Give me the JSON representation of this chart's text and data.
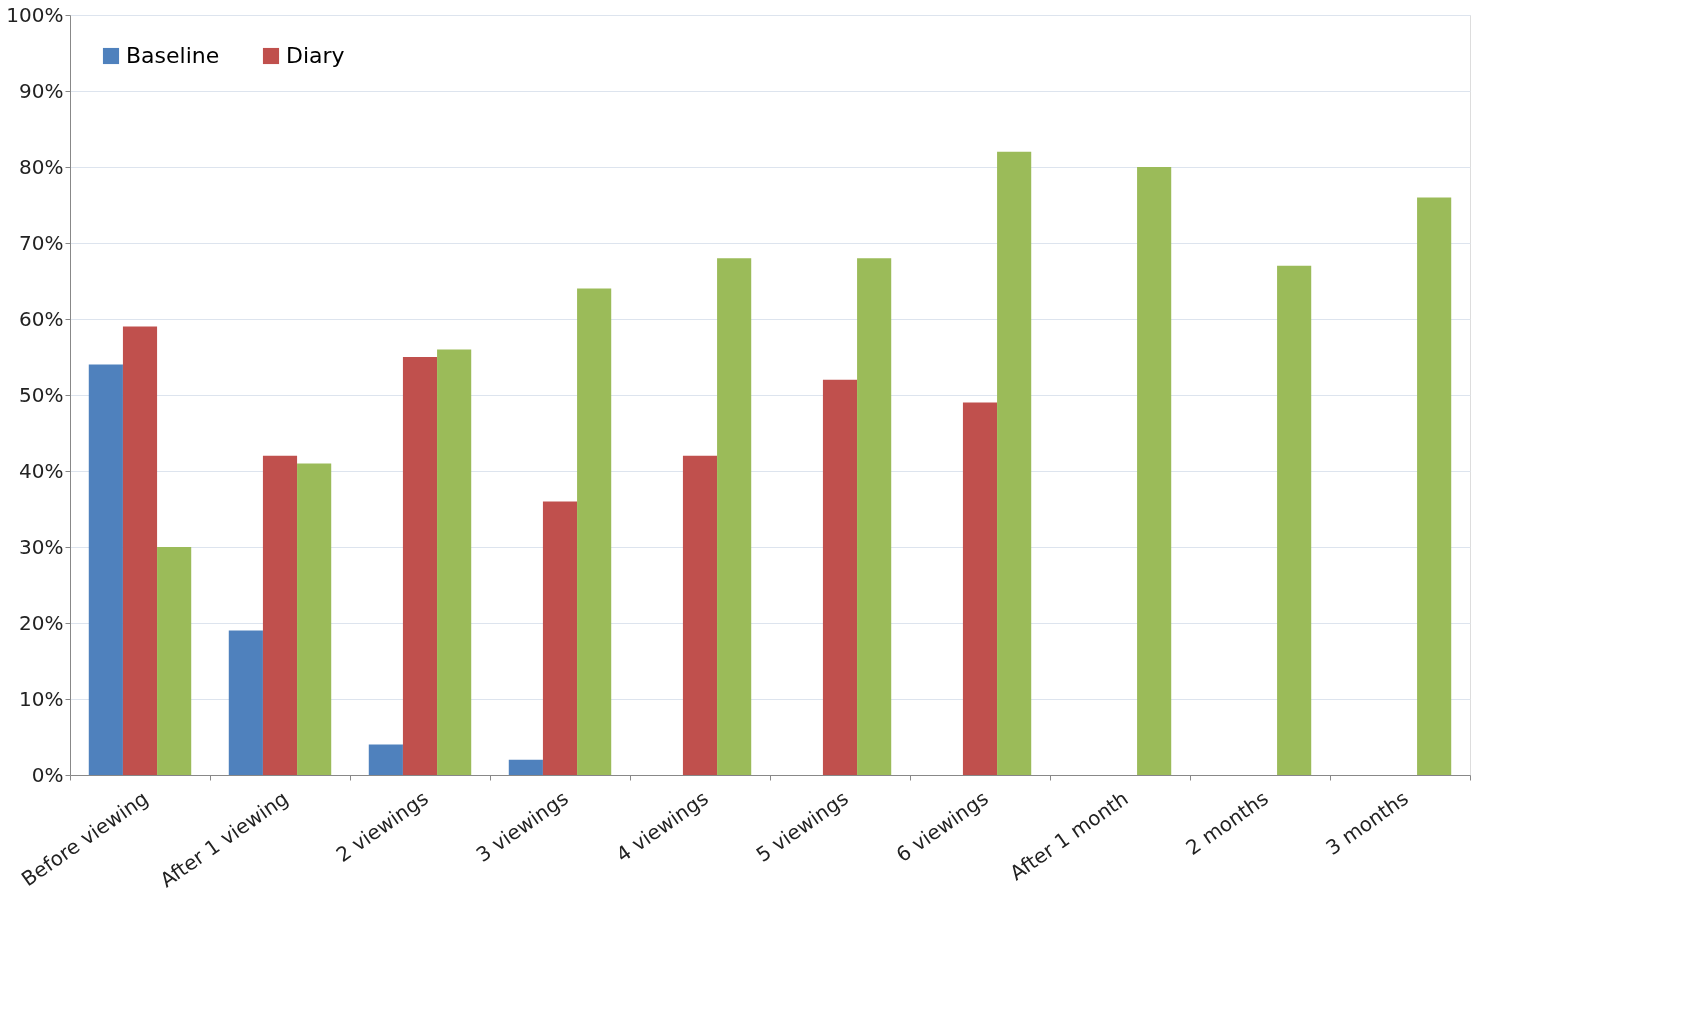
{
  "chart_data": {
    "type": "bar",
    "categories": [
      "Before viewing",
      "After 1 viewing",
      "2 viewings",
      "3 viewings",
      "4 viewings",
      "5 viewings",
      "6 viewings",
      "After 1 month",
      "2 months",
      "3 months"
    ],
    "series": [
      {
        "name": "Baseline",
        "color": "#4f81bd",
        "values": [
          54,
          19,
          4,
          2,
          null,
          null,
          null,
          null,
          null,
          null
        ]
      },
      {
        "name": "Diary",
        "color": "#c0504d",
        "values": [
          59,
          42,
          55,
          36,
          42,
          52,
          49,
          null,
          null,
          null
        ]
      },
      {
        "color": "#9bbb59",
        "values": [
          30,
          41,
          56,
          64,
          68,
          68,
          82,
          80,
          67,
          76
        ]
      }
    ],
    "ylim": [
      0,
      100
    ],
    "yticks": [
      {
        "value": 0,
        "label": "0%"
      },
      {
        "value": 10,
        "label": "10%"
      },
      {
        "value": 20,
        "label": "20%"
      },
      {
        "value": 30,
        "label": "30%"
      },
      {
        "value": 40,
        "label": "40%"
      },
      {
        "value": 50,
        "label": "50%"
      },
      {
        "value": 60,
        "label": "60%"
      },
      {
        "value": 70,
        "label": "70%"
      },
      {
        "value": 80,
        "label": "80%"
      },
      {
        "value": 90,
        "label": "90%"
      },
      {
        "value": 100,
        "label": "100%"
      }
    ],
    "grid": "y",
    "legend": "top left"
  }
}
